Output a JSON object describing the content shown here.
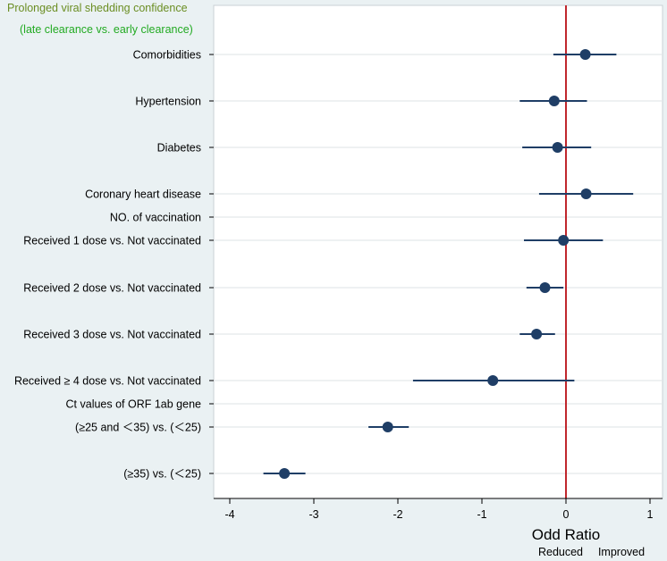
{
  "chart_data": {
    "type": "forest",
    "legend_title_line1": "Prolonged viral shedding confidence",
    "legend_title_line2": "(late clearance vs. early clearance)",
    "xlabel": "Odd Ratio",
    "direction_left": "Reduced",
    "direction_right": "Improved",
    "xlim": [
      -4.1,
      1.1
    ],
    "xticks": [
      -4,
      -3,
      -2,
      -1,
      0,
      1
    ],
    "xtick_labels": [
      "-4",
      "-3",
      "-2",
      "-1",
      "0",
      "1"
    ],
    "reference_value": 0,
    "colors": {
      "marker": "#1f3e66",
      "ci_line": "#1f3e66",
      "reference_line": "#c0262c",
      "legend_title": "#6b8e23",
      "legend_subtitle": "#22aa22",
      "gridline": "#dde3e6",
      "plot_background": "#ffffff",
      "panel_background": "#eaf1f3"
    },
    "rows": [
      {
        "label": "Comorbidities",
        "est": 0.23,
        "lo": -0.15,
        "hi": 0.6
      },
      {
        "label": "Hypertension",
        "est": -0.14,
        "lo": -0.55,
        "hi": 0.25
      },
      {
        "label": "Diabetes",
        "est": -0.1,
        "lo": -0.52,
        "hi": 0.3
      },
      {
        "label": "Coronary heart disease",
        "est": 0.24,
        "lo": -0.32,
        "hi": 0.8
      },
      {
        "label": "NO. of vaccination",
        "header": true
      },
      {
        "label": "Received 1 dose vs. Not vaccinated",
        "est": -0.03,
        "lo": -0.5,
        "hi": 0.44
      },
      {
        "label": "Received 2 dose vs. Not vaccinated",
        "est": -0.25,
        "lo": -0.47,
        "hi": -0.03
      },
      {
        "label": "Received 3 dose vs. Not vaccinated",
        "est": -0.35,
        "lo": -0.55,
        "hi": -0.13
      },
      {
        "label": "Received ≥ 4 dose vs. Not vaccinated",
        "est": -0.87,
        "lo": -1.82,
        "hi": 0.1
      },
      {
        "label": "Ct values of ORF 1ab gene",
        "header": true
      },
      {
        "label": "(≥25 and ＜35) vs. (＜25)",
        "est": -2.12,
        "lo": -2.35,
        "hi": -1.87
      },
      {
        "label": "(≥35) vs. (＜25)",
        "est": -3.35,
        "lo": -3.6,
        "hi": -3.1
      }
    ]
  }
}
